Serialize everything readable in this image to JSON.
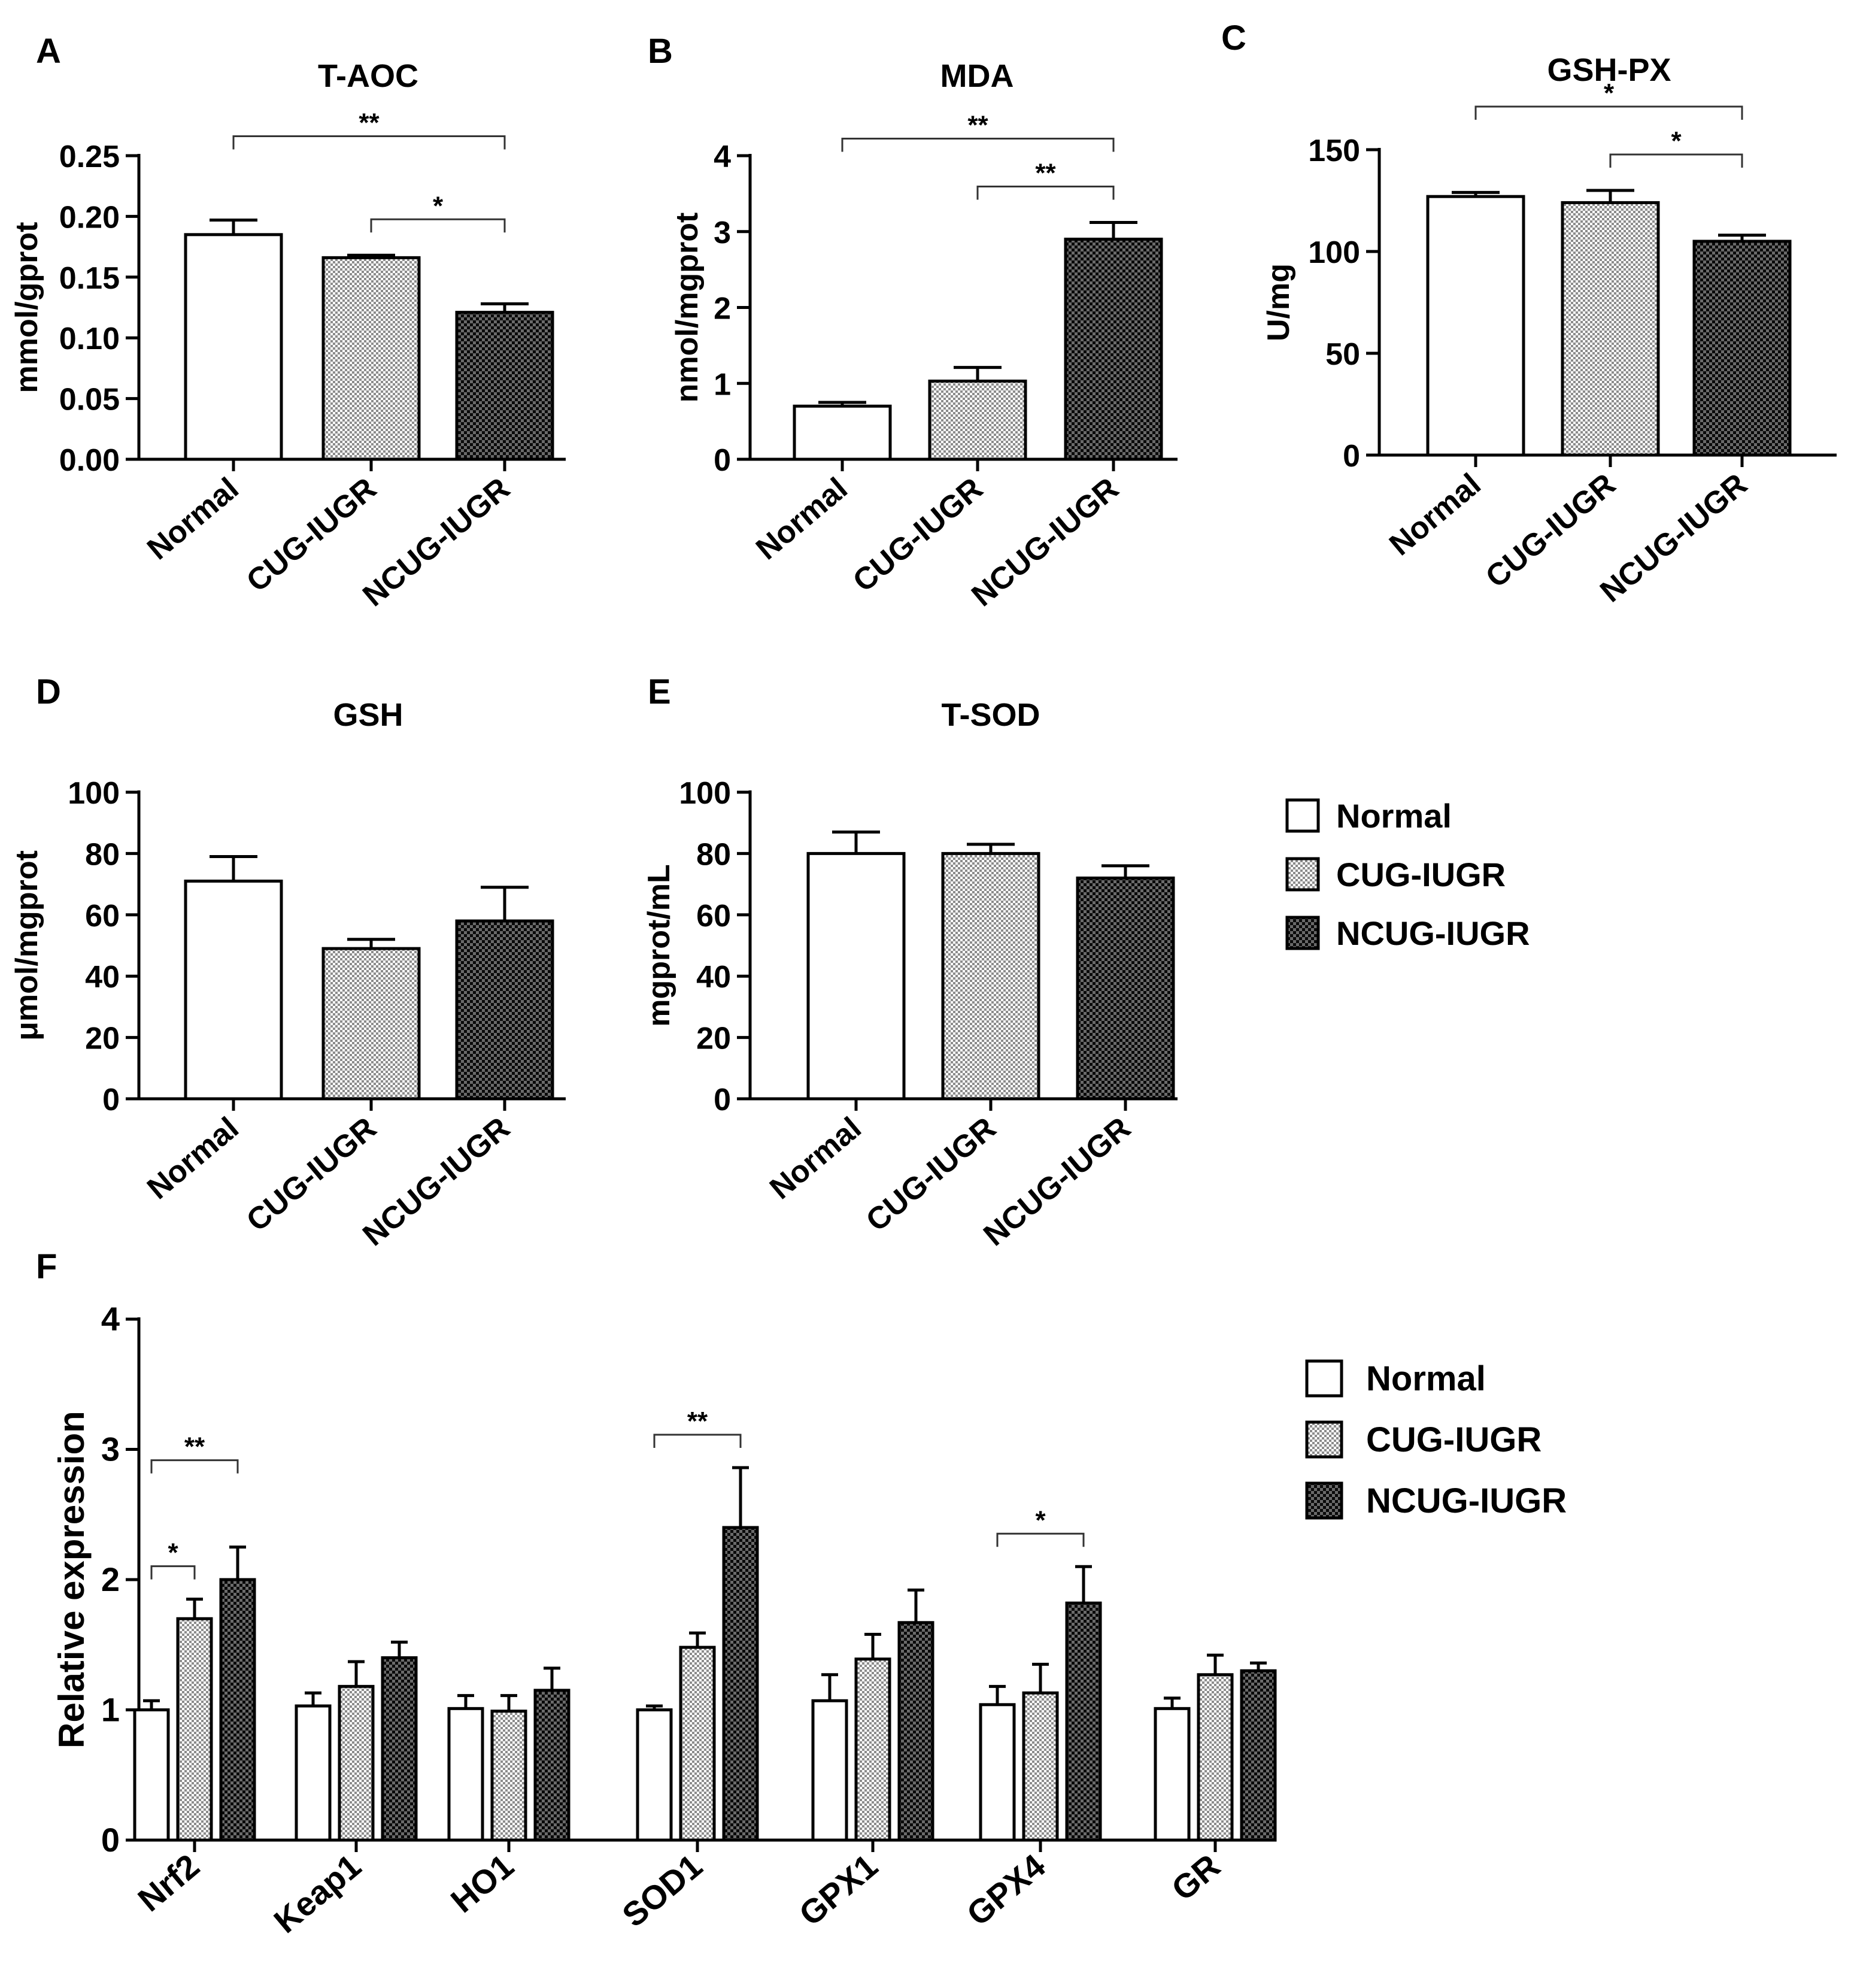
{
  "colors": {
    "normal": "#ffffff",
    "cug": "#b5b5b5",
    "ncug": "#303030",
    "axis": "#000000"
  },
  "legend_top": {
    "items": [
      "Normal",
      "CUG-IUGR",
      "NCUG-IUGR"
    ]
  },
  "legend_bottom": {
    "items": [
      "Normal",
      "CUG-IUGR",
      "NCUG-IUGR"
    ]
  },
  "chart_data": [
    {
      "panel": "A",
      "type": "bar",
      "title": "T-AOC",
      "ylabel": "mmol/gprot",
      "categories": [
        "Normal",
        "CUG-IUGR",
        "NCUG-IUGR"
      ],
      "values": [
        0.185,
        0.166,
        0.121
      ],
      "errors": [
        0.012,
        0.002,
        0.007
      ],
      "ylim": [
        0,
        0.25
      ],
      "ticks": [
        "0.00",
        "0.05",
        "0.10",
        "0.15",
        "0.20",
        "0.25"
      ],
      "annotations": [
        {
          "from": 0,
          "to": 2,
          "label": "**"
        },
        {
          "from": 1,
          "to": 2,
          "label": "*"
        }
      ]
    },
    {
      "panel": "B",
      "type": "bar",
      "title": "MDA",
      "ylabel": "nmol/mgprot",
      "categories": [
        "Normal",
        "CUG-IUGR",
        "NCUG-IUGR"
      ],
      "values": [
        0.7,
        1.03,
        2.9
      ],
      "errors": [
        0.05,
        0.18,
        0.22
      ],
      "ylim": [
        0,
        4
      ],
      "ticks": [
        "0",
        "1",
        "2",
        "3",
        "4"
      ],
      "annotations": [
        {
          "from": 0,
          "to": 2,
          "label": "**"
        },
        {
          "from": 1,
          "to": 2,
          "label": "**"
        }
      ]
    },
    {
      "panel": "C",
      "type": "bar",
      "title": "GSH-PX",
      "ylabel": "U/mg",
      "categories": [
        "Normal",
        "CUG-IUGR",
        "NCUG-IUGR"
      ],
      "values": [
        127,
        124,
        105
      ],
      "errors": [
        2,
        6,
        3
      ],
      "ylim": [
        0,
        150
      ],
      "ticks": [
        "0",
        "50",
        "100",
        "150"
      ],
      "annotations": [
        {
          "from": 0,
          "to": 2,
          "label": "*"
        },
        {
          "from": 1,
          "to": 2,
          "label": "*"
        }
      ]
    },
    {
      "panel": "D",
      "type": "bar",
      "title": "GSH",
      "ylabel": "μmol/mgprot",
      "categories": [
        "Normal",
        "CUG-IUGR",
        "NCUG-IUGR"
      ],
      "values": [
        71,
        49,
        58
      ],
      "errors": [
        8,
        3,
        11
      ],
      "ylim": [
        0,
        100
      ],
      "ticks": [
        "0",
        "20",
        "40",
        "60",
        "80",
        "100"
      ],
      "annotations": []
    },
    {
      "panel": "E",
      "type": "bar",
      "title": "T-SOD",
      "ylabel": "mgprot/mL",
      "categories": [
        "Normal",
        "CUG-IUGR",
        "NCUG-IUGR"
      ],
      "values": [
        80,
        80,
        72
      ],
      "errors": [
        7,
        3,
        4
      ],
      "ylim": [
        0,
        100
      ],
      "ticks": [
        "0",
        "20",
        "40",
        "60",
        "80",
        "100"
      ],
      "annotations": []
    },
    {
      "panel": "F",
      "type": "bar",
      "title": "",
      "ylabel": "Relative expression",
      "categories": [
        "Nrf2",
        "Keap1",
        "HO1",
        "SOD1",
        "GPX1",
        "GPX4",
        "GR"
      ],
      "series": [
        {
          "name": "Normal",
          "values": [
            1.0,
            1.03,
            1.01,
            1.0,
            1.07,
            1.04,
            1.01
          ],
          "errors": [
            0.07,
            0.1,
            0.1,
            0.03,
            0.2,
            0.14,
            0.08
          ]
        },
        {
          "name": "CUG-IUGR",
          "values": [
            1.7,
            1.18,
            0.99,
            1.48,
            1.39,
            1.13,
            1.27
          ],
          "errors": [
            0.15,
            0.19,
            0.12,
            0.11,
            0.19,
            0.22,
            0.15
          ]
        },
        {
          "name": "NCUG-IUGR",
          "values": [
            2.0,
            1.4,
            1.15,
            2.4,
            1.67,
            1.82,
            1.3
          ],
          "errors": [
            0.25,
            0.12,
            0.17,
            0.46,
            0.25,
            0.28,
            0.06
          ]
        }
      ],
      "ylim": [
        0,
        4
      ],
      "ticks": [
        "0",
        "1",
        "2",
        "3",
        "4"
      ],
      "annotations": [
        {
          "category": 0,
          "from": 0,
          "to": 2,
          "label": "**"
        },
        {
          "category": 0,
          "from": 0,
          "to": 1,
          "label": "*"
        },
        {
          "category": 3,
          "from": 0,
          "to": 2,
          "label": "**"
        },
        {
          "category": 5,
          "from": 0,
          "to": 2,
          "label": "*"
        }
      ]
    }
  ]
}
